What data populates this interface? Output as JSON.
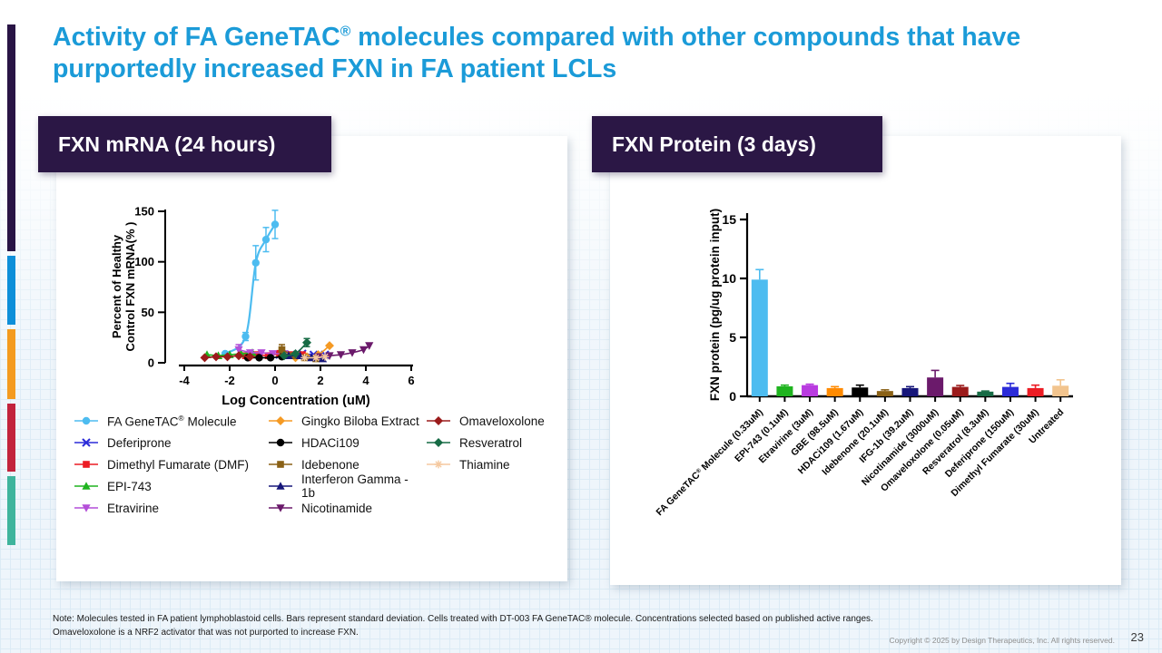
{
  "slide": {
    "title_pre": "Activity of FA GeneTAC",
    "title_sup": "®",
    "title_post": " molecules compared with other compounds that have purportedly increased FXN in FA patient LCLs",
    "title_color": "#1b9bd8",
    "header_box_color": "#2b1745",
    "accent_colors": [
      "#291445",
      "#0e8fd9",
      "#f49b1f",
      "#c2233c",
      "#3fb49c"
    ],
    "note_line1": "Note: Molecules tested in FA patient lymphoblastoid cells. Bars represent standard deviation. Cells treated with DT-003 FA GeneTAC® molecule. Concentrations selected based on published active ranges.",
    "note_line2": "Omaveloxolone is a NRF2 activator that was not purported to increase FXN.",
    "copyright": "Copyright © 2025 by Design Therapeutics, Inc. All rights reserved.",
    "page_number": "23"
  },
  "left_panel": {
    "header": "FXN mRNA (24 hours)"
  },
  "right_panel": {
    "header": "FXN Protein (3 days)"
  },
  "chart_data": [
    {
      "type": "line",
      "title": "FXN mRNA (24 hours)",
      "xlabel": "Log Concentration (uM)",
      "ylabel_lines": [
        "Percent of Healthy",
        "Control FXN mRNA(% )"
      ],
      "xlim": [
        -4,
        6
      ],
      "ylim": [
        0,
        150
      ],
      "xticks": [
        -4,
        -2,
        0,
        2,
        4,
        6
      ],
      "yticks": [
        0,
        50,
        100,
        150
      ],
      "grid": false,
      "legend_position": "below",
      "series": [
        {
          "name": "FA GeneTAC® Molecule",
          "color": "#4dbcf0",
          "marker": "circle",
          "smooth": true,
          "lw": 2.2,
          "x": [
            -2.2,
            -1.3,
            -0.85,
            -0.4,
            0.0
          ],
          "y": [
            9,
            26,
            99,
            122,
            137
          ],
          "err": [
            0,
            4,
            17,
            12,
            14
          ]
        },
        {
          "name": "Deferiprone",
          "color": "#2b2bd8",
          "marker": "x",
          "x": [
            0.2,
            0.7,
            1.2,
            1.7,
            2.2
          ],
          "y": [
            8,
            8,
            9,
            8,
            8
          ]
        },
        {
          "name": "Dimethyl Fumarate (DMF)",
          "color": "#ec1c24",
          "marker": "square",
          "x": [
            -1.3,
            -0.8,
            -0.3,
            0.2,
            0.7,
            1.2
          ],
          "y": [
            7,
            8,
            7,
            9,
            8,
            8
          ],
          "err": [
            0,
            0,
            0,
            3,
            0,
            0
          ]
        },
        {
          "name": "EPI-743",
          "color": "#1fb41f",
          "marker": "triangle-up",
          "x": [
            -3.0,
            -2.5,
            -2.0,
            -1.5,
            -1.0
          ],
          "y": [
            8,
            7,
            8,
            9,
            10
          ]
        },
        {
          "name": "Etravirine",
          "color": "#b44fd8",
          "marker": "triangle-down",
          "x": [
            -1.6,
            -1.1,
            -0.6,
            -0.1,
            0.4
          ],
          "y": [
            13,
            10,
            10,
            9,
            9
          ],
          "err": [
            5,
            0,
            0,
            0,
            0
          ]
        },
        {
          "name": "Gingko Biloba Extract",
          "color": "#f59a23",
          "marker": "diamond",
          "smooth": true,
          "x": [
            0.9,
            1.4,
            1.9,
            2.4
          ],
          "y": [
            5,
            6,
            8,
            17
          ]
        },
        {
          "name": "HDACi109",
          "color": "#000000",
          "marker": "circle",
          "x": [
            -1.2,
            -0.7,
            -0.2,
            0.3
          ],
          "y": [
            5,
            5,
            5,
            6
          ]
        },
        {
          "name": "Idebenone",
          "color": "#8a6116",
          "marker": "square",
          "x": [
            0.3,
            0.8,
            1.3,
            1.8
          ],
          "y": [
            13,
            7,
            5,
            4
          ],
          "err": [
            5,
            0,
            0,
            0
          ]
        },
        {
          "name": "Interferon Gamma - 1b",
          "color": "#16167a",
          "marker": "triangle-up",
          "x": [
            0.6,
            1.1,
            1.6,
            2.1
          ],
          "y": [
            7,
            7,
            5,
            4
          ]
        },
        {
          "name": "Nicotinamide",
          "color": "#6b1a6b",
          "marker": "triangle-down",
          "smooth": true,
          "x": [
            1.9,
            2.4,
            2.9,
            3.4,
            3.9,
            4.15
          ],
          "y": [
            6,
            7,
            8,
            10,
            13,
            17
          ]
        },
        {
          "name": "Omaveloxolone",
          "color": "#9b1b1b",
          "marker": "diamond",
          "x": [
            -3.1,
            -2.6,
            -2.1,
            -1.6,
            -1.1
          ],
          "y": [
            5,
            6,
            6,
            7,
            6
          ]
        },
        {
          "name": "Resveratrol",
          "color": "#176b45",
          "marker": "diamond",
          "smooth": true,
          "x": [
            0.4,
            0.9,
            1.4
          ],
          "y": [
            7,
            9,
            20
          ],
          "err": [
            0,
            0,
            4
          ]
        },
        {
          "name": "Thiamine",
          "color": "#f5c9a0",
          "marker": "star",
          "x": [
            1.3,
            1.8,
            2.2
          ],
          "y": [
            5,
            5,
            6
          ]
        }
      ],
      "legend_columns": [
        [
          0,
          1,
          2,
          3,
          4
        ],
        [
          5,
          6,
          7,
          8,
          9
        ],
        [
          10,
          11,
          12
        ]
      ]
    },
    {
      "type": "bar",
      "title": "FXN Protein (3 days)",
      "ylabel": "FXN protein (pg/ug protein input)",
      "ylim": [
        0,
        15
      ],
      "yticks": [
        0,
        5,
        10,
        15
      ],
      "grid": false,
      "categories": [
        "FA GeneTAC® Molecule (0.33uM)",
        "EPI-743 (0.1uM)",
        "Etravirine (3uM)",
        "GBE (98.5uM)",
        "HDACi109 (1.67uM)",
        "Idebenone (20.1uM)",
        "IFG-1b (39.2uM)",
        "Nicotinamide (3000uM)",
        "Omaveloxolone (0.05uM)",
        "Resveratrol (8.3uM)",
        "Deferiprone (150uM)",
        "Dimethyl Fumarate (30uM)",
        "Untreated"
      ],
      "values": [
        9.9,
        0.85,
        0.95,
        0.7,
        0.75,
        0.45,
        0.7,
        1.6,
        0.8,
        0.4,
        0.8,
        0.7,
        0.9
      ],
      "errors": [
        0.85,
        0.1,
        0.08,
        0.12,
        0.2,
        0.1,
        0.12,
        0.6,
        0.12,
        0.05,
        0.3,
        0.25,
        0.5
      ],
      "colors": [
        "#4dbcf0",
        "#1fb41f",
        "#b93be0",
        "#ff8a00",
        "#000000",
        "#8a6116",
        "#16167a",
        "#6b1a6b",
        "#9b1b1b",
        "#176b45",
        "#2b2bd8",
        "#ec1c24",
        "#f2c48e"
      ]
    }
  ]
}
